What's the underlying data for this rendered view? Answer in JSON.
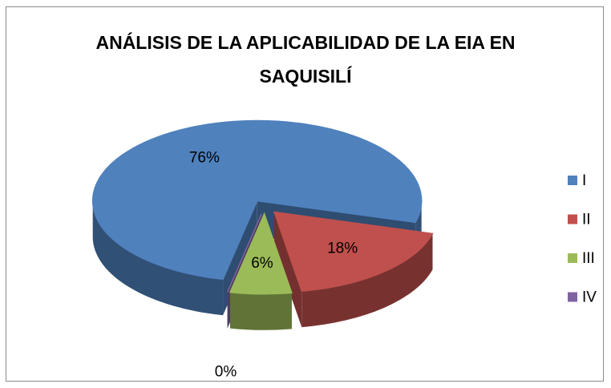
{
  "chart_data": {
    "type": "pie",
    "title": "ANÁLISIS DE LA APLICABILIDAD DE LA EIA EN SAQUISILÍ",
    "categories": [
      "I",
      "II",
      "III",
      "IV"
    ],
    "values": [
      76,
      18,
      6,
      0
    ],
    "value_labels": [
      "76%",
      "18%",
      "6%",
      "0%"
    ],
    "colors": [
      "#4f81bd",
      "#c0504d",
      "#9bbb59",
      "#8064a2"
    ],
    "legend": "right"
  }
}
